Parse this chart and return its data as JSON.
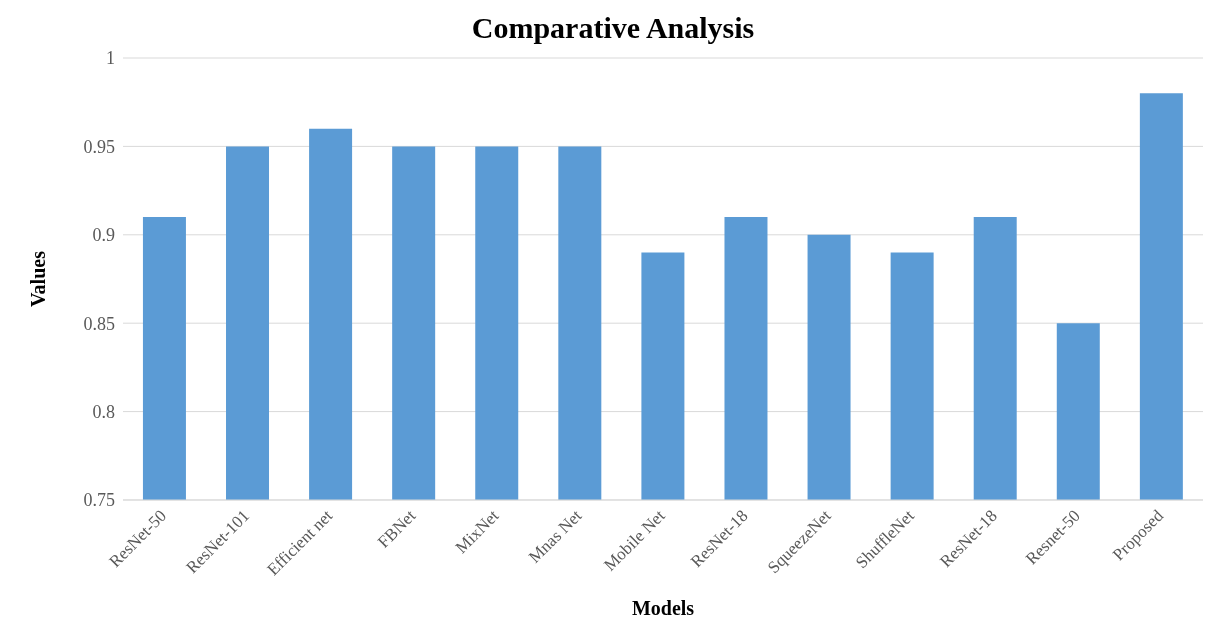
{
  "chart_data": {
    "type": "bar",
    "title": "Comparative Analysis",
    "xlabel": "Models",
    "ylabel": "Values",
    "categories": [
      "ResNet-50",
      "ResNet-101",
      "Efficient net",
      "FBNet",
      "MixNet",
      "Mnas Net",
      "Mobile Net",
      "ResNet-18",
      "SqueezeNet",
      "ShuffleNet",
      "ResNet-18",
      "Resnet-50",
      "Proposed"
    ],
    "values": [
      0.91,
      0.95,
      0.96,
      0.95,
      0.95,
      0.95,
      0.89,
      0.91,
      0.9,
      0.89,
      0.91,
      0.85,
      0.98
    ],
    "color": "#5b9bd5",
    "ylim": [
      0.75,
      1
    ],
    "yticks": [
      0.75,
      0.8,
      0.85,
      0.9,
      0.95,
      1
    ],
    "grid": "y"
  }
}
